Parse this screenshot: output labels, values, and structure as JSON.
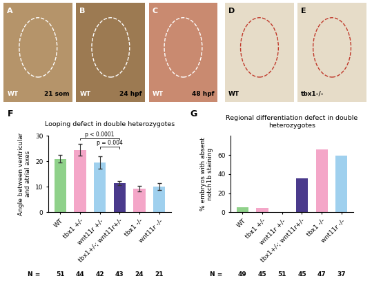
{
  "panels": [
    {
      "label": "A",
      "genotype": "WT",
      "stage": "21 som"
    },
    {
      "label": "B",
      "genotype": "WT",
      "stage": "24 hpf"
    },
    {
      "label": "C",
      "genotype": "WT",
      "stage": "48 hpf"
    },
    {
      "label": "D",
      "genotype": "WT"
    },
    {
      "label": "E",
      "genotype": "tbx1-/-"
    }
  ],
  "chart_data": [
    {
      "panel": "F",
      "type": "bar",
      "title": "Looping defect in double heterozygotes",
      "y_label": "Angle between ventricular\nand atrial axes",
      "categories": [
        "WT",
        "tbx1 +/-",
        "wnt11r +/-",
        "tbx1+/-; wnt11r+/-",
        "tbx1 -/-",
        "wnt11r -/-"
      ],
      "values": [
        21,
        24.5,
        19.5,
        11.5,
        9.3,
        10.1
      ],
      "errors": [
        1.5,
        2.3,
        2.5,
        0.8,
        1.0,
        1.3
      ],
      "colors": [
        "#8fd18a",
        "#f4a6c8",
        "#9fd0ee",
        "#4a3a8c",
        "#f4a6c8",
        "#9fd0ee"
      ],
      "ylim": [
        0,
        30
      ],
      "yticks": [
        0,
        10,
        20,
        30
      ],
      "n_label": "N =",
      "n_values": [
        51,
        44,
        42,
        43,
        24,
        21
      ],
      "annotations": [
        {
          "text": "p < 0.0001",
          "from": 1,
          "to": 3
        },
        {
          "text": "p = 0.004",
          "from": 2,
          "to": 3
        }
      ]
    },
    {
      "panel": "G",
      "type": "bar",
      "title": "Regional differentiation defect in double heterozygotes",
      "y_label": "% embryos with absent\nnotch1b staining",
      "categories": [
        "WT",
        "tbx1 +/-",
        "wnt11r +/-",
        "tbx1+/-; wnt11r+/-",
        "tbx1 -/-",
        "wnt11r -/-"
      ],
      "values": [
        5.5,
        4.3,
        0,
        35.5,
        65.5,
        59
      ],
      "colors": [
        "#8fd18a",
        "#f4a6c8",
        "#9fd0ee",
        "#4a3a8c",
        "#f4a6c8",
        "#9fd0ee"
      ],
      "ylim": [
        0,
        80
      ],
      "yticks": [
        0,
        20,
        40,
        60
      ],
      "n_label": "N =",
      "n_values": [
        49,
        45,
        51,
        45,
        47,
        37
      ]
    }
  ]
}
